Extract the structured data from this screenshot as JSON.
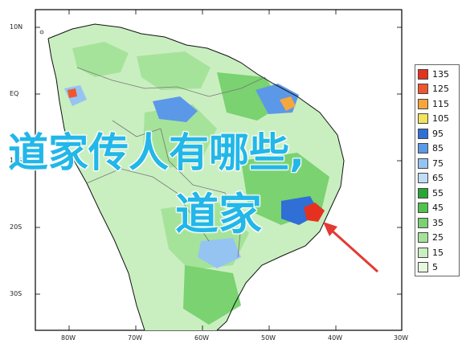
{
  "map": {
    "lat_labels": [
      "10N",
      "EQ",
      "10S",
      "20S",
      "30S"
    ],
    "lon_labels": [
      "80W",
      "70W",
      "60W",
      "50W",
      "40W",
      "30W"
    ],
    "colors": {
      "land_bg": "#ffffff",
      "coastline": "#111111",
      "border": "#777777",
      "frame": "#000000"
    }
  },
  "legend": {
    "levels": [
      {
        "value": "135",
        "color": "#e5311f"
      },
      {
        "value": "125",
        "color": "#f0562d"
      },
      {
        "value": "115",
        "color": "#f7a63c"
      },
      {
        "value": "105",
        "color": "#f3e25c"
      },
      {
        "value": "95",
        "color": "#2f6fd6"
      },
      {
        "value": "85",
        "color": "#5c98e8"
      },
      {
        "value": "75",
        "color": "#95c4f3"
      },
      {
        "value": "65",
        "color": "#c1def7"
      },
      {
        "value": "55",
        "color": "#27a635"
      },
      {
        "value": "45",
        "color": "#4fc34d"
      },
      {
        "value": "35",
        "color": "#7ad270"
      },
      {
        "value": "25",
        "color": "#a5e39a"
      },
      {
        "value": "15",
        "color": "#c9efc0"
      },
      {
        "value": "5",
        "color": "#e6f8df"
      }
    ]
  },
  "overlay": {
    "line1": "道家传人有哪些,",
    "line2": "道家",
    "color": "#22b7e8",
    "arrow_color": "#e33a33"
  }
}
